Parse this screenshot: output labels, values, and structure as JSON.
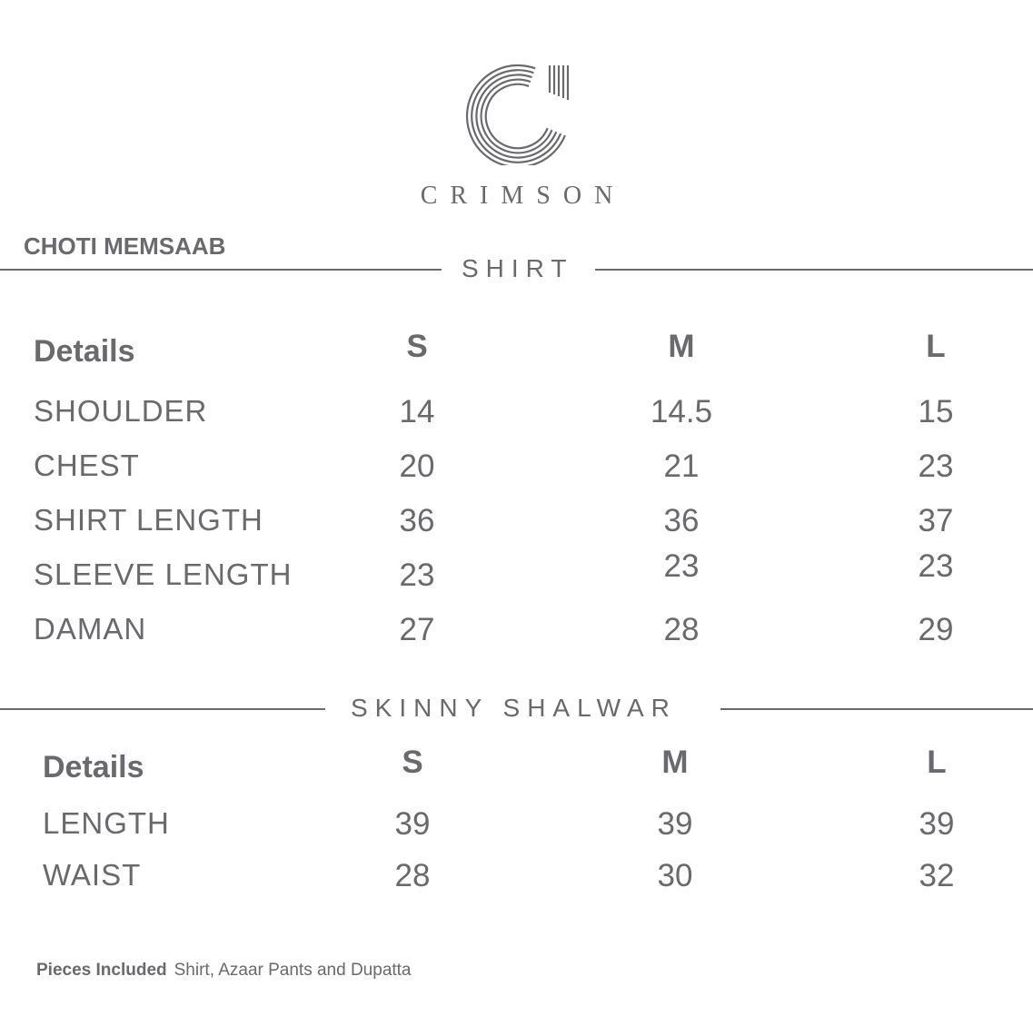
{
  "brand": {
    "name": "CRIMSON",
    "logo_icon": "crimson-c-logo"
  },
  "product": "CHOTI MEMSAAB",
  "shirt": {
    "title": "SHIRT",
    "header": [
      "Details",
      "S",
      "M",
      "L"
    ],
    "rows": [
      {
        "label": "SHOULDER",
        "values": [
          "14",
          "14.5",
          "15"
        ]
      },
      {
        "label": "CHEST",
        "values": [
          "20",
          "21",
          "23"
        ]
      },
      {
        "label": "SHIRT LENGTH",
        "values": [
          "36",
          "36",
          "37"
        ]
      },
      {
        "label": "SLEEVE LENGTH",
        "values": [
          "23",
          "23",
          "23"
        ]
      },
      {
        "label": "DAMAN",
        "values": [
          "27",
          "28",
          "29"
        ]
      }
    ]
  },
  "shalwar": {
    "title": "SKINNY SHALWAR",
    "header": [
      "Details",
      "S",
      "M",
      "L"
    ],
    "rows": [
      {
        "label": "LENGTH",
        "values": [
          "39",
          "39",
          "39"
        ]
      },
      {
        "label": "WAIST",
        "values": [
          "28",
          "30",
          "32"
        ]
      }
    ]
  },
  "footer": {
    "label": "Pieces Included",
    "value": "Shirt, Azaar Pants and Dupatta"
  },
  "colors": {
    "text": "#6a6a6e"
  }
}
